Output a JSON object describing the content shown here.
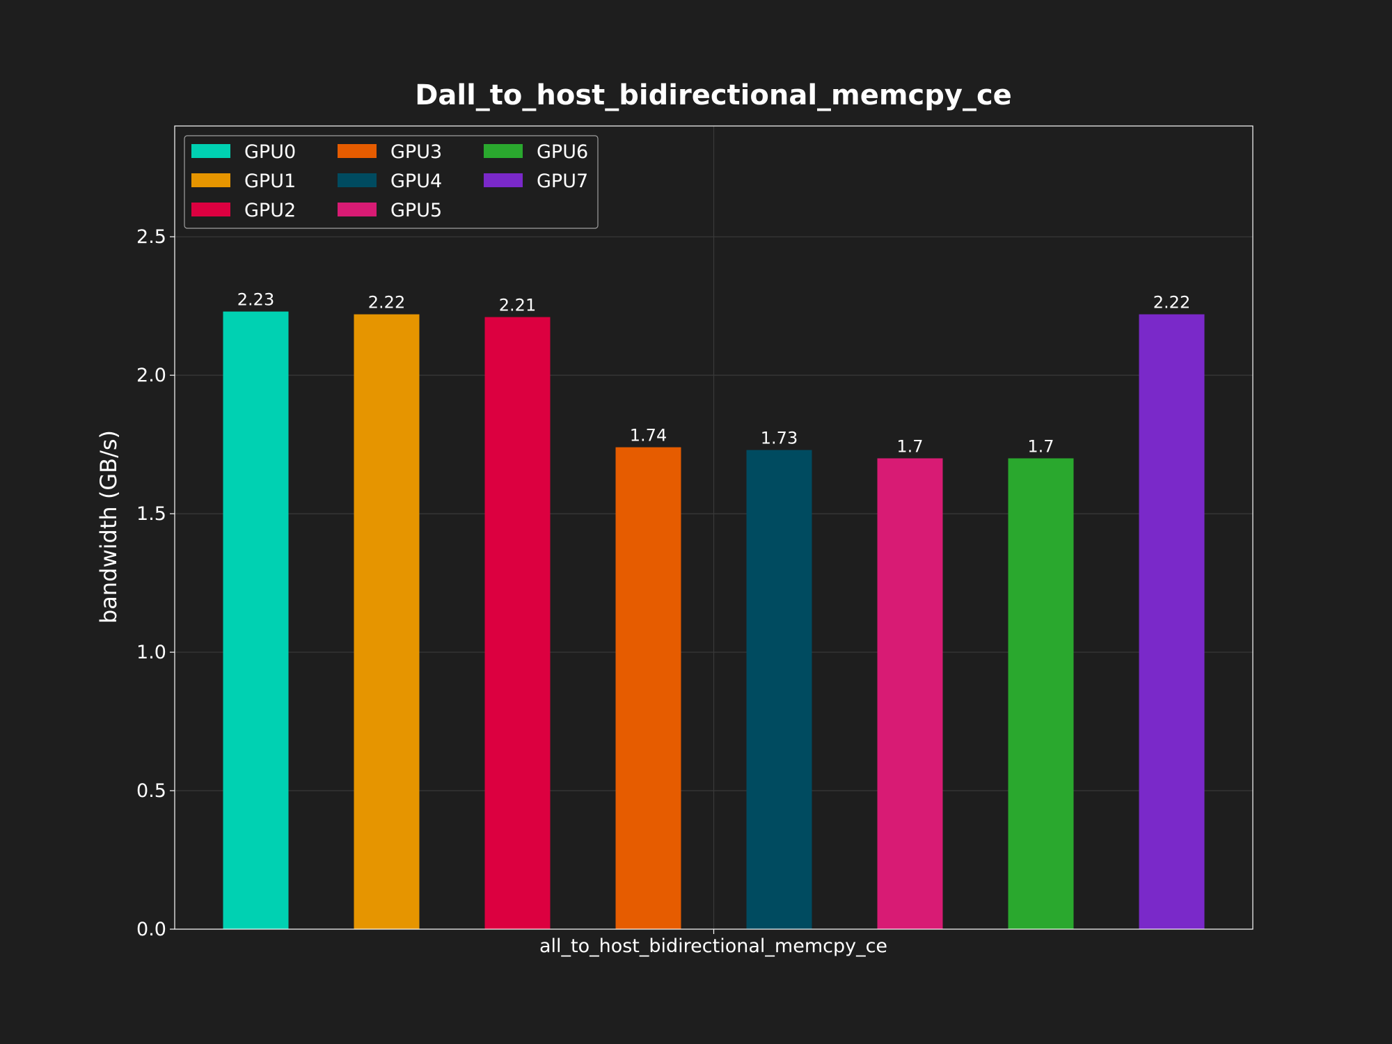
{
  "chart_data": {
    "type": "bar",
    "title": "Dall_to_host_bidirectional_memcpy_ce",
    "xlabel": "",
    "ylabel": "bandwidth (GB/s)",
    "categories": [
      "all_to_host_bidirectional_memcpy_ce"
    ],
    "ylim": [
      0,
      2.9
    ],
    "yticks": [
      "0.0",
      "0.5",
      "1.0",
      "1.5",
      "2.0",
      "2.5"
    ],
    "grid": true,
    "legend_position": "top-left",
    "legend_columns": 3,
    "series": [
      {
        "name": "GPU0",
        "values": [
          2.23
        ],
        "label": "2.23",
        "color": "#00d1b2"
      },
      {
        "name": "GPU1",
        "values": [
          2.22
        ],
        "label": "2.22",
        "color": "#e69500"
      },
      {
        "name": "GPU2",
        "values": [
          2.21
        ],
        "label": "2.21",
        "color": "#dc0040"
      },
      {
        "name": "GPU3",
        "values": [
          1.74
        ],
        "label": "1.74",
        "color": "#e65c00"
      },
      {
        "name": "GPU4",
        "values": [
          1.73
        ],
        "label": "1.73",
        "color": "#004b60"
      },
      {
        "name": "GPU5",
        "values": [
          1.7
        ],
        "label": "1.7",
        "color": "#d81b74"
      },
      {
        "name": "GPU6",
        "values": [
          1.7
        ],
        "label": "1.7",
        "color": "#2aa82e"
      },
      {
        "name": "GPU7",
        "values": [
          2.22
        ],
        "label": "2.22",
        "color": "#7a29c9"
      }
    ]
  }
}
